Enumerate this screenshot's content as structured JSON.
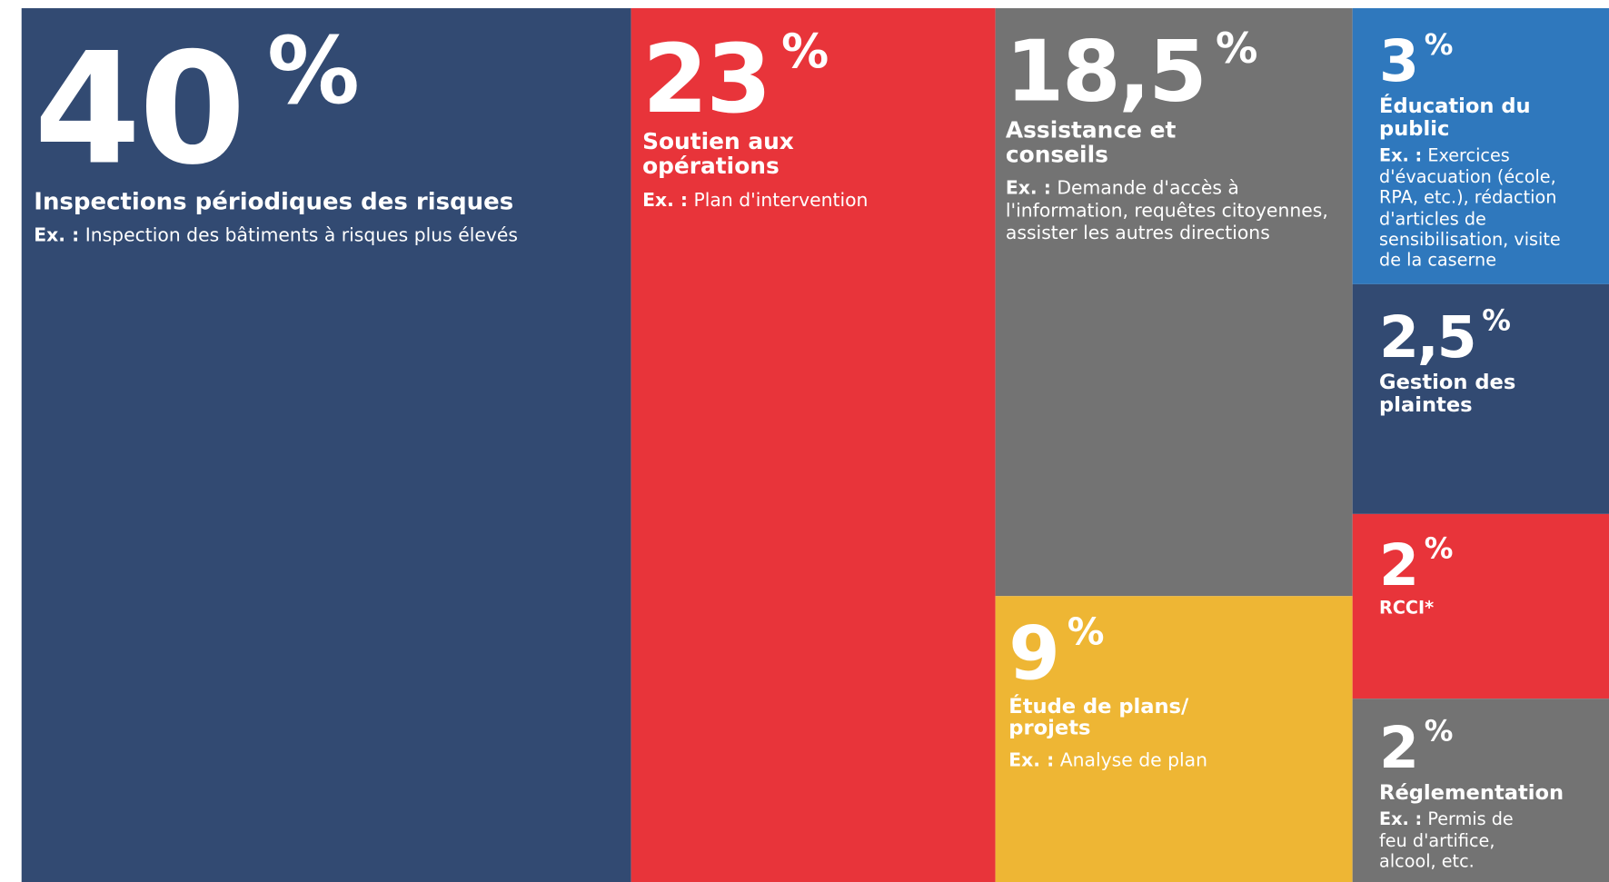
{
  "chart_data": {
    "type": "treemap",
    "unit": "%",
    "example_prefix": "Ex. :",
    "categories": [
      "Inspections périodiques des risques",
      "Soutien aux opérations",
      "Assistance et conseils",
      "Étude de plans/ projets",
      "Éducation du public",
      "Gestion des plaintes",
      "RCCI*",
      "Réglementation"
    ],
    "values": [
      40,
      23,
      18.5,
      9,
      3,
      2.5,
      2,
      2
    ],
    "value_labels": [
      "40",
      "23",
      "18,5",
      "9",
      "3",
      "2,5",
      "2",
      "2"
    ],
    "colors": [
      "#324a72",
      "#e8343a",
      "#737373",
      "#eeb634",
      "#2f78bd",
      "#324a72",
      "#e8343a",
      "#737373"
    ],
    "examples": [
      "Inspection des bâtiments à risques plus élevés",
      "Plan d'intervention",
      "Demande d'accès à l'information, requêtes citoyennes, assister les autres directions",
      "Analyse de plan",
      "Exercices d'évacuation (école, RPA, etc.), rédaction d'articles de sensibilisation, visite de la caserne",
      null,
      null,
      "Permis de feu d'artifice, alcool, etc."
    ]
  }
}
